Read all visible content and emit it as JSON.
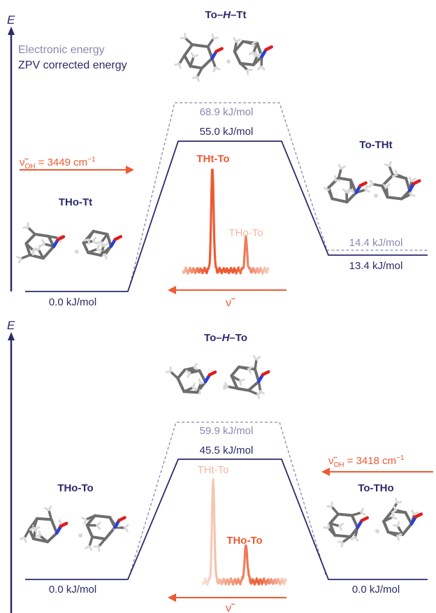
{
  "colors": {
    "navy": "#2b2a6b",
    "lavender": "#8a88b0",
    "orange": "#ee5a33",
    "light_orange": "#f4b7a0",
    "atom_c": "#6e6e6e",
    "atom_h": "#d9d9d9",
    "atom_n": "#2a3fd6",
    "atom_o": "#e01c1c"
  },
  "panels": [
    {
      "axis_label": "E",
      "legend": {
        "electronic": "Electronic energy",
        "zpv": "ZPV corrected energy"
      },
      "ts_label": {
        "pre": "To–",
        "mid": "H",
        "post": "–Tt"
      },
      "ts_electronic": "68.9 kJ/mol",
      "ts_zpv": "55.0 kJ/mol",
      "left_label": "THo-Tt",
      "left_energy": "0.0 kJ/mol",
      "right_label": "To-THt",
      "right_electronic": "14.4 kJ/mol",
      "right_zpv": "13.4 kJ/mol",
      "freq_note": {
        "sym": "ν̃",
        "sub": "OH",
        "val": " = 3449 cm",
        "sup": "−1"
      },
      "spectrum_major": "THt-To",
      "spectrum_minor": "THo-To",
      "nu_axis": "ν̃"
    },
    {
      "axis_label": "E",
      "ts_label": {
        "pre": "To–",
        "mid": "H",
        "post": "–To"
      },
      "ts_electronic": "59.9 kJ/mol",
      "ts_zpv": "45.5 kJ/mol",
      "left_label": "THo-To",
      "left_energy": "0.0 kJ/mol",
      "right_label": "To-THo",
      "right_energy": "0.0 kJ/mol",
      "freq_note": {
        "sym": "ν̃",
        "sub": "OH",
        "val": " = 3418 cm",
        "sup": "−1"
      },
      "spectrum_major": "THo-To",
      "spectrum_minor": "THt-To",
      "nu_axis": "ν̃"
    }
  ]
}
